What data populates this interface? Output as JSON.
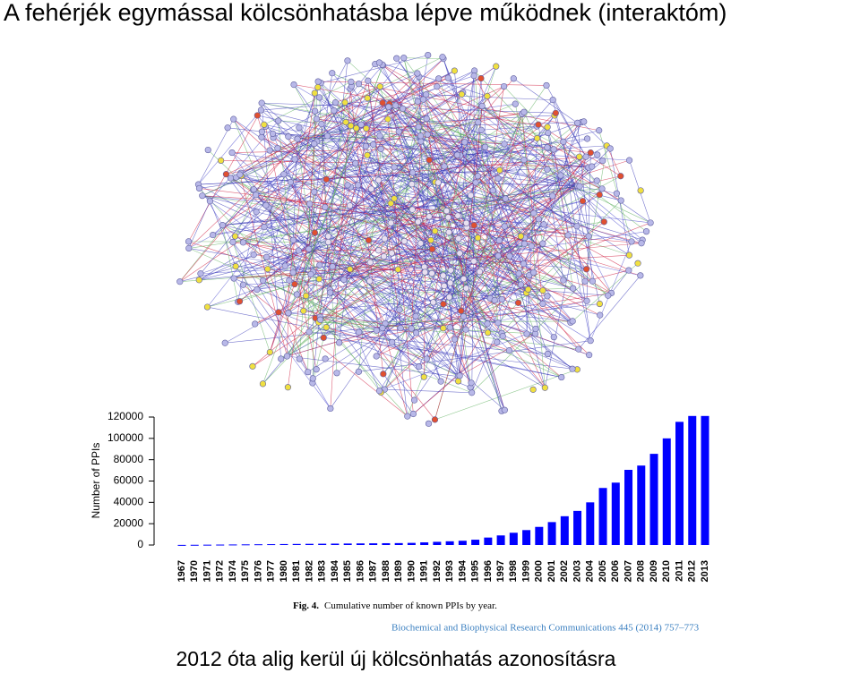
{
  "title": "A fehérjék egymással kölcsönhatásba lépve működnek (interaktóm)",
  "chart_data": {
    "type": "bar",
    "y_label": "Number of PPIs",
    "categories": [
      "1967",
      "1970",
      "1971",
      "1972",
      "1974",
      "1975",
      "1976",
      "1977",
      "1980",
      "1981",
      "1982",
      "1983",
      "1984",
      "1985",
      "1986",
      "1987",
      "1988",
      "1989",
      "1990",
      "1991",
      "1992",
      "1993",
      "1994",
      "1995",
      "1996",
      "1997",
      "1998",
      "1999",
      "2000",
      "2001",
      "2002",
      "2003",
      "2004",
      "2005",
      "2006",
      "2007",
      "2008",
      "2009",
      "2010",
      "2011",
      "2012",
      "2013"
    ],
    "values": [
      100,
      200,
      300,
      400,
      500,
      600,
      700,
      800,
      900,
      1000,
      1100,
      1200,
      1300,
      1400,
      1500,
      1600,
      1700,
      1800,
      2000,
      2500,
      3000,
      3500,
      4000,
      5000,
      7000,
      9000,
      11500,
      14000,
      17000,
      21500,
      27000,
      32000,
      40000,
      53500,
      58500,
      70500,
      74500,
      85500,
      100000,
      115500,
      121000,
      121000
    ],
    "color": "#0000ff",
    "ylim": [
      0,
      121000
    ],
    "yticks": [
      0,
      20000,
      40000,
      60000,
      80000,
      100000,
      120000
    ]
  },
  "caption": {
    "label": "Fig. 4.",
    "text": "Cumulative number of known PPIs by year."
  },
  "citation": "Biochemical and Biophysical Research Communications 445 (2014) 757–773",
  "footer": "2012 óta alig kerül új kölcsönhatás azonosításra"
}
